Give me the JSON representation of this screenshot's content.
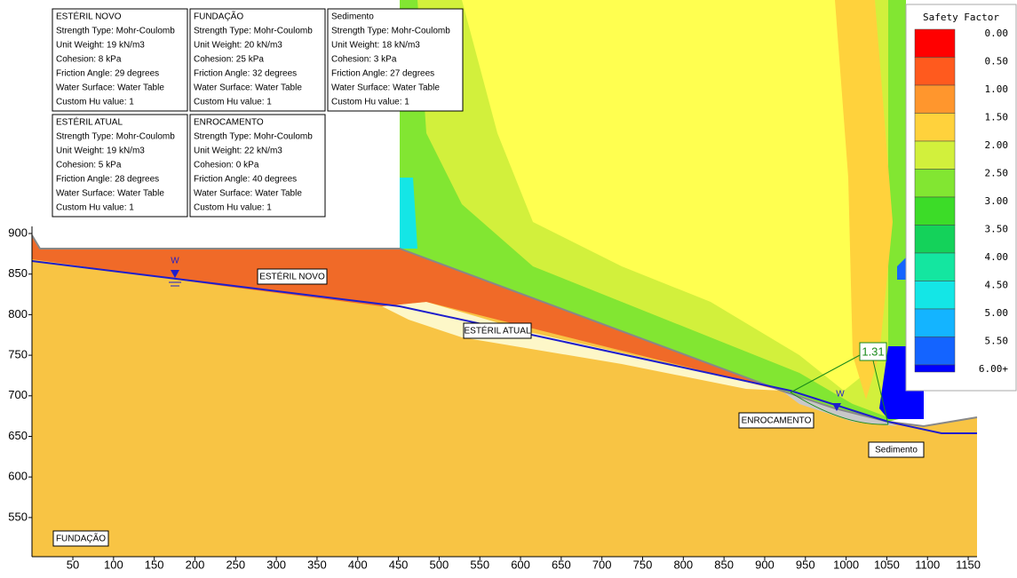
{
  "materials": [
    {
      "name": "ESTÉRIL NOVO",
      "lines": [
        "Strength Type: Mohr-Coulomb",
        "Unit Weight: 19 kN/m3",
        "Cohesion: 8 kPa",
        "Friction Angle: 29 degrees",
        "Water Surface: Water Table",
        "Custom Hu value: 1"
      ]
    },
    {
      "name": "FUNDAÇÃO",
      "lines": [
        "Strength Type: Mohr-Coulomb",
        "Unit Weight: 20 kN/m3",
        "Cohesion: 25 kPa",
        "Friction Angle: 32 degrees",
        "Water Surface: Water Table",
        "Custom Hu value: 1"
      ]
    },
    {
      "name": "Sedimento",
      "lines": [
        "Strength Type: Mohr-Coulomb",
        "Unit Weight: 18 kN/m3",
        "Cohesion: 3 kPa",
        "Friction Angle: 27 degrees",
        "Water Surface: Water Table",
        "Custom Hu value: 1"
      ]
    },
    {
      "name": "ESTÉRIL ATUAL",
      "lines": [
        "Strength Type: Mohr-Coulomb",
        "Unit Weight: 19 kN/m3",
        "Cohesion: 5 kPa",
        "Friction Angle: 28 degrees",
        "Water Surface: Water Table",
        "Custom Hu value: 1"
      ]
    },
    {
      "name": "ENROCAMENTO",
      "lines": [
        "Strength Type: Mohr-Coulomb",
        "Unit Weight: 22 kN/m3",
        "Cohesion: 0 kPa",
        "Friction Angle: 40 degrees",
        "Water Surface: Water Table",
        "Custom Hu value: 1"
      ]
    }
  ],
  "legend": {
    "title": "Safety Factor",
    "entries": [
      {
        "label": "0.00",
        "color": "#ff0000"
      },
      {
        "label": "0.50",
        "color": "#ff5a1e"
      },
      {
        "label": "1.00",
        "color": "#ff962d"
      },
      {
        "label": "1.50",
        "color": "#ffd23c"
      },
      {
        "label": "2.00",
        "color": "#d2f03c"
      },
      {
        "label": "2.50",
        "color": "#82e632"
      },
      {
        "label": "3.00",
        "color": "#3cdc28"
      },
      {
        "label": "3.50",
        "color": "#14d25a"
      },
      {
        "label": "4.00",
        "color": "#14e6a0"
      },
      {
        "label": "4.50",
        "color": "#14e6e6"
      },
      {
        "label": "5.00",
        "color": "#14b4ff"
      },
      {
        "label": "5.50",
        "color": "#1464ff"
      },
      {
        "label": "6.00+",
        "color": "#0000ff"
      }
    ]
  },
  "regions": [
    "ESTÉRIL NOVO",
    "ESTÉRIL ATUAL",
    "ENROCAMENTO",
    "Sedimento",
    "FUNDAÇÃO"
  ],
  "safety_factor": "1.31",
  "water_marker": "W",
  "xticks": [
    50,
    100,
    150,
    200,
    250,
    300,
    350,
    400,
    450,
    500,
    550,
    600,
    650,
    700,
    750,
    800,
    850,
    900,
    950,
    1000,
    1050,
    1100,
    1150
  ],
  "yticks": [
    550,
    600,
    650,
    700,
    750,
    800,
    850,
    900
  ]
}
